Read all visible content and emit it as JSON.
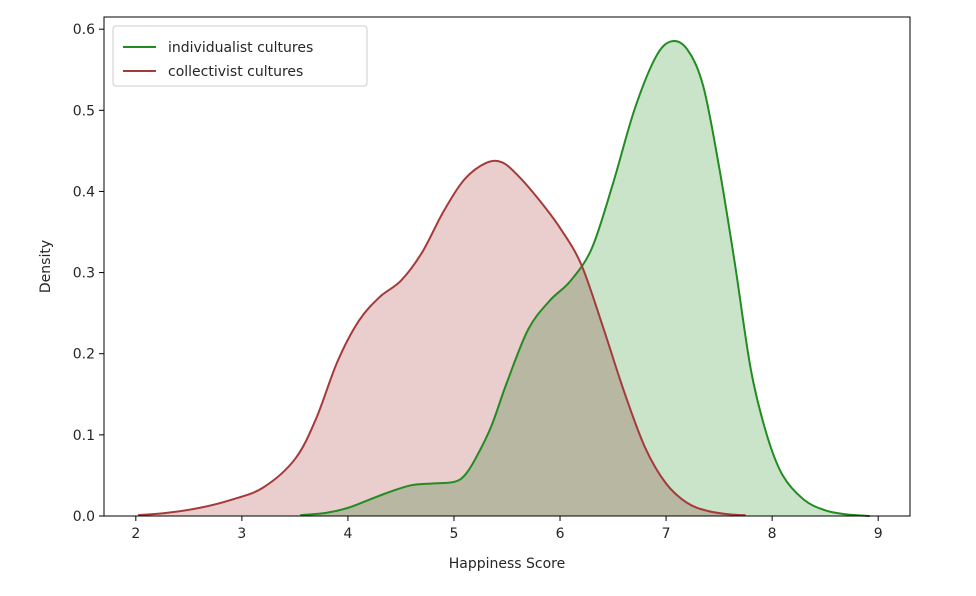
{
  "chart_data": {
    "type": "area",
    "title": "",
    "xlabel": "Happiness Score",
    "ylabel": "Density",
    "xlim": [
      1.7,
      9.3
    ],
    "ylim": [
      0,
      0.615
    ],
    "xticks": [
      2,
      3,
      4,
      5,
      6,
      7,
      8,
      9
    ],
    "yticks": [
      0.0,
      0.1,
      0.2,
      0.3,
      0.4,
      0.5,
      0.6
    ],
    "ytick_labels": [
      "0.0",
      "0.1",
      "0.2",
      "0.3",
      "0.4",
      "0.5",
      "0.6"
    ],
    "grid": false,
    "legend_position": "top-left",
    "series": [
      {
        "name": "individualist cultures",
        "color": "#228b22",
        "fill": "#c0dfc0",
        "x": [
          3.55,
          3.8,
          4.0,
          4.2,
          4.4,
          4.6,
          4.8,
          5.0,
          5.1,
          5.2,
          5.35,
          5.5,
          5.7,
          5.9,
          6.1,
          6.3,
          6.5,
          6.7,
          6.9,
          7.05,
          7.2,
          7.35,
          7.5,
          7.65,
          7.8,
          7.95,
          8.1,
          8.3,
          8.5,
          8.7,
          8.92
        ],
        "y": [
          0.001,
          0.004,
          0.01,
          0.02,
          0.03,
          0.038,
          0.04,
          0.042,
          0.05,
          0.07,
          0.11,
          0.165,
          0.23,
          0.265,
          0.29,
          0.33,
          0.41,
          0.5,
          0.565,
          0.585,
          0.575,
          0.53,
          0.43,
          0.31,
          0.18,
          0.1,
          0.05,
          0.02,
          0.007,
          0.002,
          0.0
        ]
      },
      {
        "name": "collectivist cultures",
        "color": "#a53a3a",
        "fill": "#e6c4c4",
        "x": [
          2.02,
          2.3,
          2.6,
          2.9,
          3.2,
          3.5,
          3.7,
          3.9,
          4.1,
          4.3,
          4.5,
          4.7,
          4.9,
          5.1,
          5.3,
          5.45,
          5.6,
          5.8,
          6.0,
          6.2,
          6.4,
          6.6,
          6.8,
          7.0,
          7.2,
          7.4,
          7.6,
          7.75
        ],
        "y": [
          0.001,
          0.004,
          0.01,
          0.02,
          0.035,
          0.07,
          0.12,
          0.19,
          0.24,
          0.27,
          0.29,
          0.325,
          0.375,
          0.415,
          0.435,
          0.436,
          0.42,
          0.39,
          0.355,
          0.31,
          0.235,
          0.155,
          0.085,
          0.04,
          0.016,
          0.006,
          0.002,
          0.001
        ]
      }
    ]
  }
}
